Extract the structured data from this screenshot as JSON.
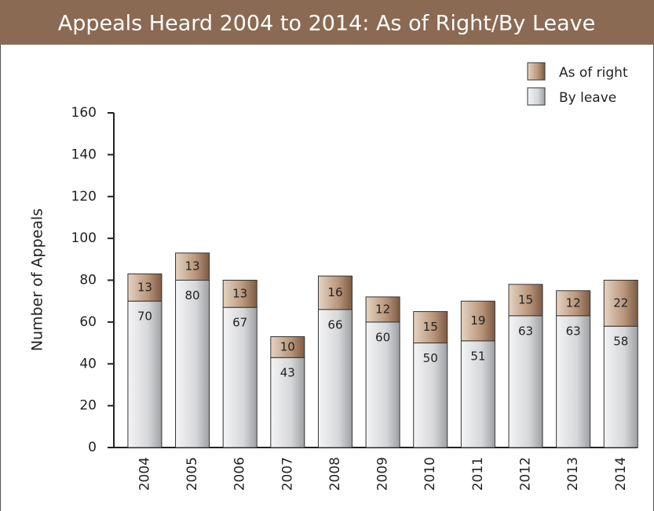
{
  "chart_data": {
    "type": "stacked_bar",
    "title": "Appeals Heard 2004 to 2014: As of Right/By Leave",
    "y_label": "Number of Appeals",
    "categories": [
      "2004",
      "2005",
      "2006",
      "2007",
      "2008",
      "2009",
      "2010",
      "2011",
      "2012",
      "2013",
      "2014"
    ],
    "series": [
      {
        "name": "By leave",
        "color": "#d4d5d7",
        "values": [
          70,
          80,
          67,
          43,
          66,
          60,
          50,
          51,
          63,
          63,
          58
        ]
      },
      {
        "name": "As of right",
        "color": "#a8846a",
        "values": [
          13,
          13,
          13,
          10,
          16,
          12,
          15,
          19,
          15,
          12,
          22
        ]
      }
    ],
    "ylim": [
      0,
      160
    ],
    "yticks": [
      0,
      20,
      40,
      60,
      80,
      100,
      120,
      140,
      160
    ],
    "legend": "top-right"
  }
}
